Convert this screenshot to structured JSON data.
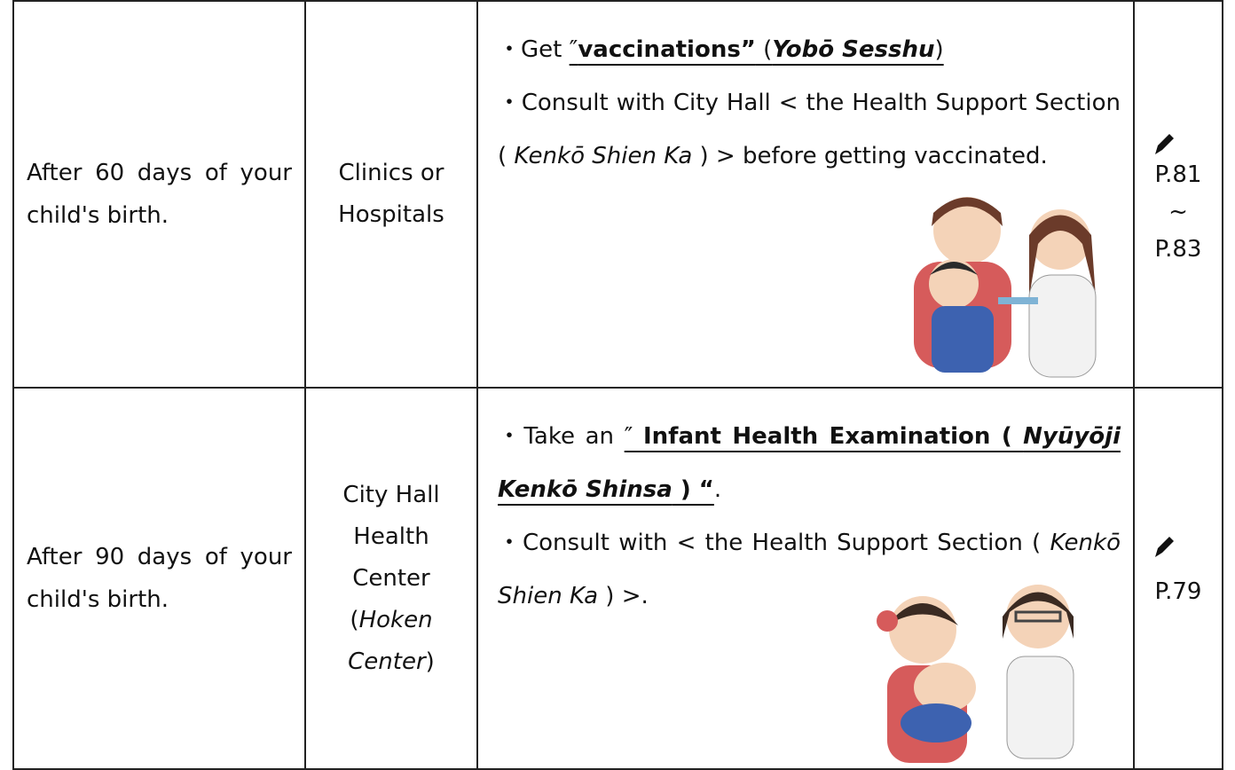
{
  "table": {
    "rows": [
      {
        "when": "After 60 days of your child's birth.",
        "where": [
          {
            "text": "Clinics or Hospitals"
          }
        ],
        "items": [
          [
            {
              "text": "・Get "
            },
            {
              "text": "″",
              "underline": true
            },
            {
              "text": "vaccinations”",
              "bold": true,
              "underline": true
            },
            {
              "text": " (",
              "underline": true
            },
            {
              "text": "Yobō Sesshu",
              "bold": true,
              "italic": true,
              "underline": true
            },
            {
              "text": ")",
              "underline": true
            }
          ],
          [
            {
              "text": "・Consult with City Hall < the Health Support Section ( "
            },
            {
              "text": "Kenkō Shien Ka",
              "italic": true
            },
            {
              "text": " ) > before getting vaccinated."
            }
          ]
        ],
        "pages": [
          "P.81",
          "~",
          "P.83"
        ]
      },
      {
        "when": "After 90 days of your child's birth.",
        "where": [
          {
            "text": "City Hall Health Center ("
          },
          {
            "text": "Hoken Center",
            "italic": true
          },
          {
            "text": ")"
          }
        ],
        "items": [
          [
            {
              "text": "・Take an "
            },
            {
              "text": "″ ",
              "underline": true
            },
            {
              "text": "Infant Health Examination ( ",
              "bold": true,
              "underline": true
            },
            {
              "text": "Nyūyōji Kenkō Shinsa",
              "bold": true,
              "italic": true,
              "underline": true
            },
            {
              "text": " ) “",
              "bold": true,
              "underline": true
            },
            {
              "text": "."
            }
          ],
          [
            {
              "text": "・Consult with < the Health Support Section ( "
            },
            {
              "text": "Kenkō Shien Ka",
              "italic": true
            },
            {
              "text": " ) >."
            }
          ]
        ],
        "pages": [
          "P.79"
        ]
      }
    ]
  }
}
